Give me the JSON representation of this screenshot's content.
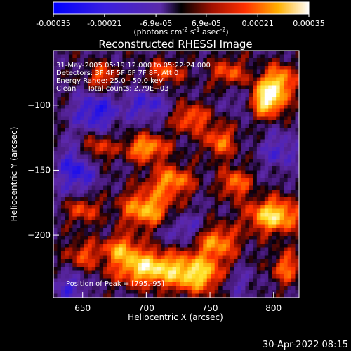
{
  "chart_data": {
    "type": "heatmap",
    "title": "Reconstructed RHESSI Image",
    "xlabel": "Heliocentric X (arcsec)",
    "ylabel": "Heliocentric Y (arcsec)",
    "xlim": [
      627,
      820
    ],
    "ylim": [
      -248,
      -58
    ],
    "xticks": [
      650,
      700,
      750,
      800
    ],
    "yticks": [
      -100,
      -150,
      -200
    ],
    "colorbar": {
      "range": [
        -0.00035,
        0.00035
      ],
      "tick_values": [
        -0.00035,
        -0.00021,
        -6.9e-05,
        6.9e-05,
        0.00021,
        0.00035
      ],
      "tick_labels": [
        "-0.00035",
        "-0.00021",
        "-6.9e-05",
        "6.9e-05",
        "0.00021",
        "0.00035"
      ],
      "unit_main": "(photons cm",
      "unit_exp1": "-2",
      "unit_mid": " s",
      "unit_exp2": "-1",
      "unit_end": " asec",
      "unit_exp3": "-2",
      "unit_close": ")"
    },
    "annotations": [
      "31-May-2005 05:19:12.000 to 05:22:24.000",
      "Detectors: 3F 4F 5F 6F 7F 8F, Att 0",
      "Energy Range: 25.0 - 50.0 keV",
      "Clean     Total counts: 2.79E+03"
    ],
    "peak_label": "Position of Peak = [795,-95]",
    "peak_position": [
      795,
      -95
    ],
    "hot_regions": [
      {
        "x": 795,
        "y": -95,
        "amp": 1.0,
        "sx": 10,
        "sy": 9
      },
      {
        "x": 805,
        "y": -80,
        "amp": 0.6,
        "sx": 9,
        "sy": 8
      },
      {
        "x": 765,
        "y": -75,
        "amp": 0.45,
        "sx": 10,
        "sy": 8
      },
      {
        "x": 715,
        "y": -75,
        "amp": 0.45,
        "sx": 10,
        "sy": 7
      },
      {
        "x": 665,
        "y": -78,
        "amp": 0.45,
        "sx": 8,
        "sy": 7
      },
      {
        "x": 735,
        "y": -110,
        "amp": 0.5,
        "sx": 10,
        "sy": 8
      },
      {
        "x": 700,
        "y": -133,
        "amp": 0.65,
        "sx": 12,
        "sy": 7
      },
      {
        "x": 660,
        "y": -133,
        "amp": 0.45,
        "sx": 9,
        "sy": 7
      },
      {
        "x": 758,
        "y": -128,
        "amp": 0.5,
        "sx": 9,
        "sy": 9
      },
      {
        "x": 720,
        "y": -158,
        "amp": 0.6,
        "sx": 12,
        "sy": 8
      },
      {
        "x": 770,
        "y": -160,
        "amp": 0.55,
        "sx": 8,
        "sy": 8
      },
      {
        "x": 700,
        "y": -180,
        "amp": 0.7,
        "sx": 14,
        "sy": 10
      },
      {
        "x": 800,
        "y": -185,
        "amp": 0.85,
        "sx": 14,
        "sy": 9
      },
      {
        "x": 650,
        "y": -180,
        "amp": 0.45,
        "sx": 9,
        "sy": 8
      },
      {
        "x": 755,
        "y": -205,
        "amp": 0.6,
        "sx": 12,
        "sy": 9
      },
      {
        "x": 700,
        "y": -225,
        "amp": 0.85,
        "sx": 18,
        "sy": 9
      },
      {
        "x": 740,
        "y": -230,
        "amp": 0.8,
        "sx": 16,
        "sy": 10
      },
      {
        "x": 680,
        "y": -210,
        "amp": 0.55,
        "sx": 10,
        "sy": 7
      },
      {
        "x": 810,
        "y": -225,
        "amp": 0.5,
        "sx": 8,
        "sy": 9
      },
      {
        "x": 650,
        "y": -215,
        "amp": 0.4,
        "sx": 9,
        "sy": 8
      }
    ],
    "cold_regions": [
      {
        "x": 660,
        "y": -105,
        "amp": 0.9,
        "sx": 12,
        "sy": 10
      },
      {
        "x": 645,
        "y": -150,
        "amp": 0.9,
        "sx": 10,
        "sy": 14
      },
      {
        "x": 700,
        "y": -100,
        "amp": 0.7,
        "sx": 12,
        "sy": 8
      },
      {
        "x": 730,
        "y": -195,
        "amp": 0.6,
        "sx": 12,
        "sy": 8
      },
      {
        "x": 805,
        "y": -135,
        "amp": 0.6,
        "sx": 10,
        "sy": 10
      },
      {
        "x": 770,
        "y": -235,
        "amp": 0.5,
        "sx": 10,
        "sy": 8
      },
      {
        "x": 640,
        "y": -240,
        "amp": 0.6,
        "sx": 10,
        "sy": 8
      },
      {
        "x": 775,
        "y": -95,
        "amp": 0.5,
        "sx": 8,
        "sy": 8
      }
    ],
    "grid": false
  },
  "footer": {
    "timestamp": "30-Apr-2022 08:15"
  },
  "colors": {
    "background": "#000000",
    "foreground": "#ffffff"
  }
}
